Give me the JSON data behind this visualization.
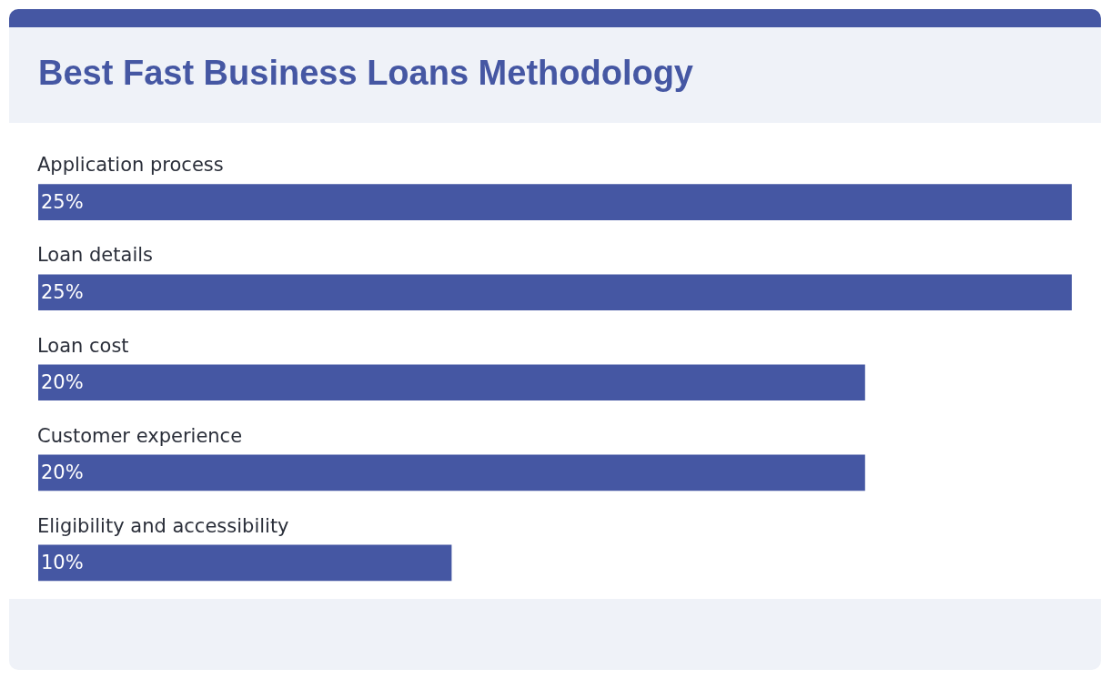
{
  "chart_data": {
    "type": "bar",
    "orientation": "horizontal",
    "title": "Best Fast Business Loans Methodology",
    "categories": [
      "Application process",
      "Loan details",
      "Loan cost",
      "Customer experience",
      "Eligibility and accessibility"
    ],
    "values": [
      25,
      25,
      20,
      20,
      10
    ],
    "value_labels": [
      "25%",
      "25%",
      "20%",
      "20%",
      "10%"
    ],
    "color": "#4557a3",
    "xlim": [
      0,
      25
    ],
    "tick_labels": false
  }
}
